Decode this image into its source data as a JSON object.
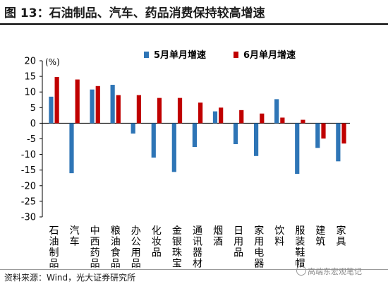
{
  "figure_title": "图 13：石油制品、汽车、药品消费保持较高增速",
  "source": "资料来源：Wind，光大证券研究所",
  "watermark": "高端东宏观笔记",
  "colors": {
    "s1": "#2e75b6",
    "s2": "#c00000"
  },
  "chart_data": {
    "type": "bar",
    "unit": "(%)",
    "ylim": [
      -30,
      20
    ],
    "ytick_step": 5,
    "legend": "top",
    "categories": [
      "石油制品",
      "汽车",
      "中西药品",
      "粮油食品",
      "办公用品",
      "化妆品",
      "金银珠宝",
      "通讯器材",
      "烟酒",
      "日用品",
      "家用电器",
      "饮料",
      "服装鞋帽",
      "建筑",
      "家具"
    ],
    "series": [
      {
        "name": "5月单月增速",
        "values": [
          8.5,
          -16,
          10.8,
          12.3,
          -3.3,
          -11,
          -15.6,
          -7.6,
          3.8,
          -6.7,
          -10.5,
          7.7,
          -16.2,
          -7.9,
          -12.2
        ]
      },
      {
        "name": "6月单月增速",
        "values": [
          14.8,
          14,
          11.9,
          9,
          9,
          8.1,
          8.1,
          6.6,
          5,
          4.2,
          3.1,
          1.8,
          1.1,
          -4.9,
          -6.5
        ]
      }
    ]
  }
}
